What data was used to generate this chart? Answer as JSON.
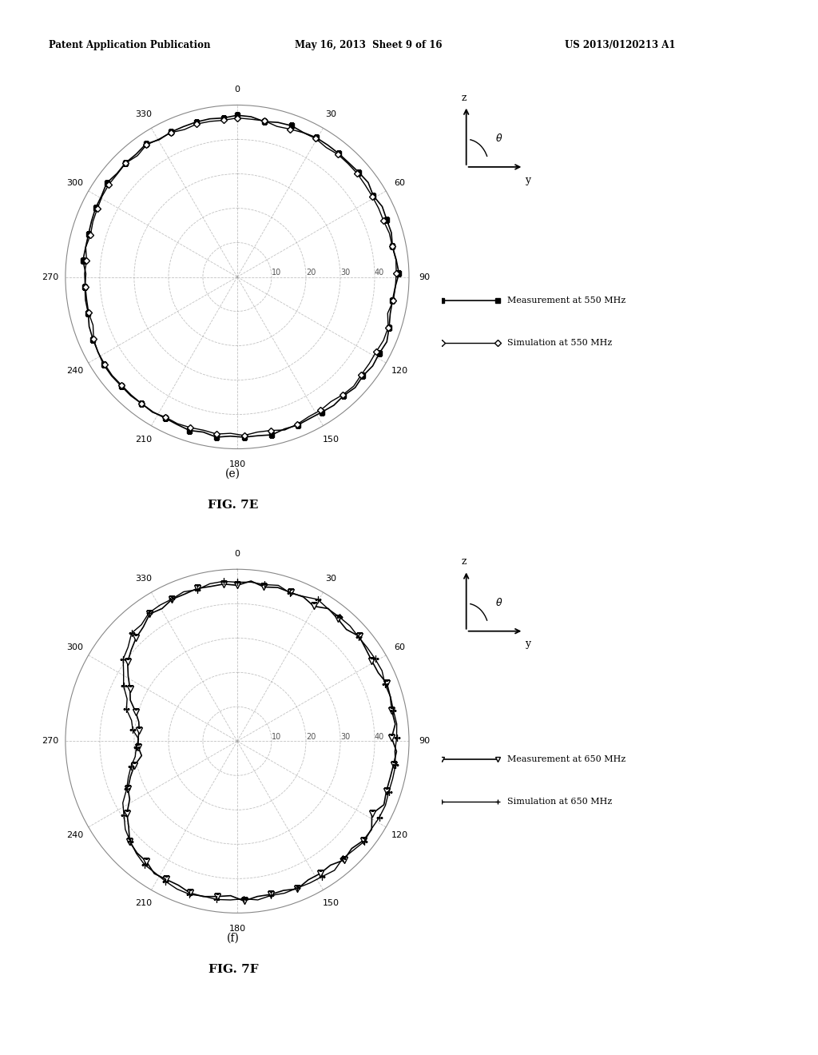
{
  "header_left": "Patent Application Publication",
  "header_mid": "May 16, 2013  Sheet 9 of 16",
  "header_right": "US 2013/0120213 A1",
  "fig_e_label": "(e)",
  "fig_e_title": "FIG. 7E",
  "fig_f_label": "(f)",
  "fig_f_title": "FIG. 7F",
  "legend_e_line1": "Measurement at 550 MHz",
  "legend_e_line2": "Simulation at 550 MHz",
  "legend_f_line1": "Measurement at 650 MHz",
  "legend_f_line2": "Simulation at 650 MHz",
  "r_max": 50,
  "background_color": "#ffffff",
  "line_color": "#000000",
  "grid_color": "#999999"
}
